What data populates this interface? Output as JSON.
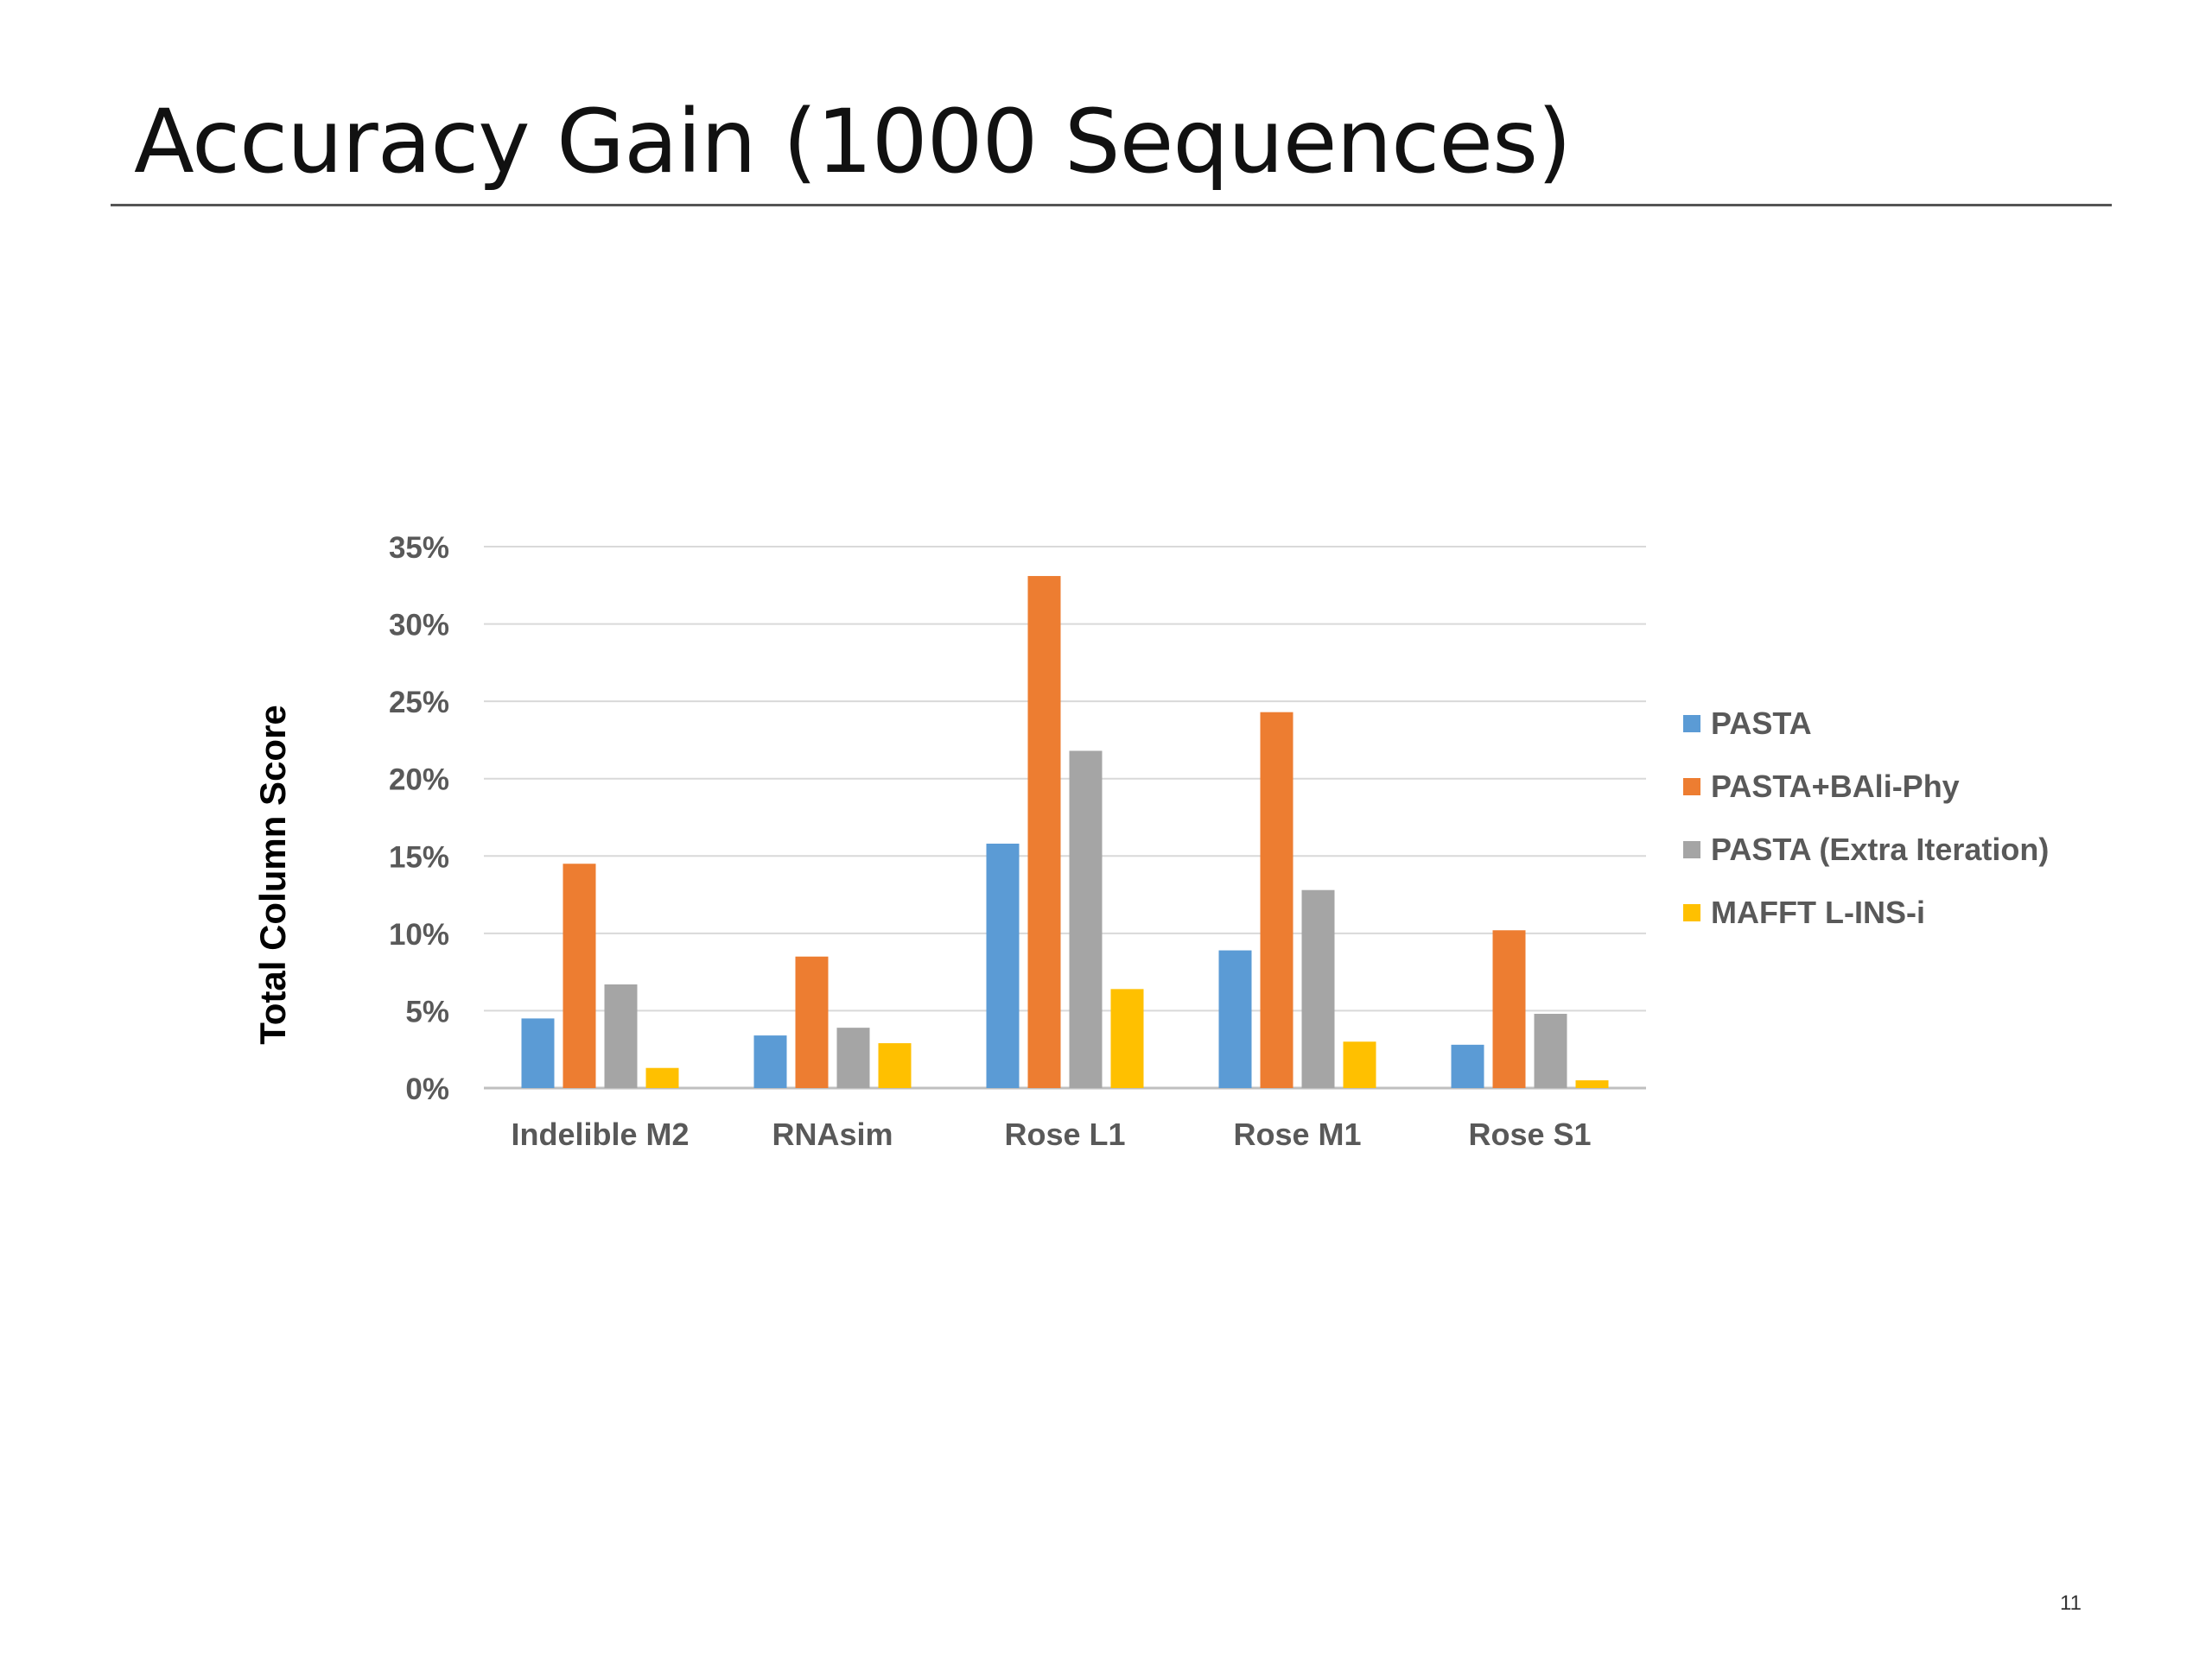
{
  "slide": {
    "title": "Accuracy Gain (1000 Sequences)",
    "page_number": "11"
  },
  "chart_data": {
    "type": "bar",
    "title": "",
    "xlabel": "",
    "ylabel": "Total Column Score",
    "categories": [
      "Indelible M2",
      "RNAsim",
      "Rose L1",
      "Rose M1",
      "Rose S1"
    ],
    "ylim": [
      0,
      35
    ],
    "yticks": [
      "0%",
      "5%",
      "10%",
      "15%",
      "20%",
      "25%",
      "30%",
      "35%"
    ],
    "grid": true,
    "legend_position": "right",
    "series": [
      {
        "name": "PASTA",
        "color": "#5B9BD5",
        "values": [
          4.5,
          3.4,
          15.8,
          8.9,
          2.8
        ]
      },
      {
        "name": "PASTA+BAli-Phy",
        "color": "#ED7D31",
        "values": [
          14.5,
          8.5,
          33.1,
          24.3,
          10.2
        ]
      },
      {
        "name": "PASTA (Extra Iteration)",
        "color": "#A5A5A5",
        "values": [
          6.7,
          3.9,
          21.8,
          12.8,
          4.8
        ]
      },
      {
        "name": "MAFFT L-INS-i",
        "color": "#FFC000",
        "values": [
          1.3,
          2.9,
          6.4,
          3.0,
          0.5
        ]
      }
    ]
  }
}
